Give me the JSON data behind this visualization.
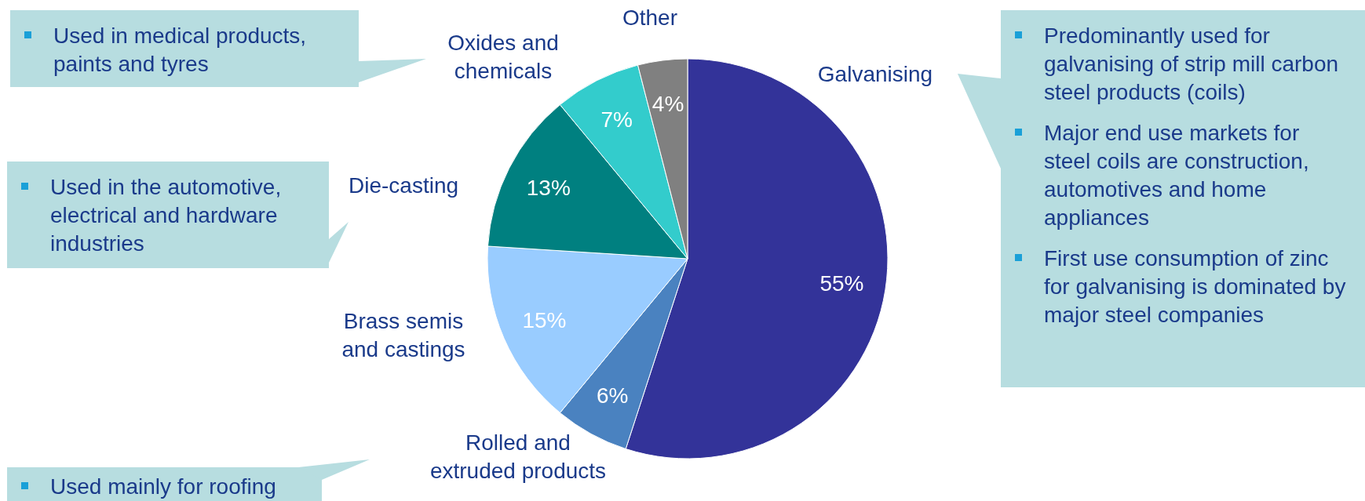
{
  "chart_data": {
    "type": "pie",
    "categories": [
      "Galvanising",
      "Rolled and extruded products",
      "Brass semis and castings",
      "Die-casting",
      "Oxides and chemicals",
      "Other"
    ],
    "values": [
      55,
      6,
      15,
      13,
      7,
      4
    ],
    "colors": [
      "#333399",
      "#4a82c0",
      "#99ccff",
      "#008080",
      "#33cccc",
      "#808080"
    ],
    "value_labels": [
      "55%",
      "6%",
      "15%",
      "13%",
      "7%",
      "4%"
    ],
    "annotations": [
      "Used in medical products, paints and tyres",
      "Used in the automotive, electrical and hardware industries",
      "Used mainly for roofing",
      "Predominantly used for galvanising of strip mill carbon steel products (coils)",
      "Major end use markets for steel coils are construction, automotives and home appliances",
      "First use consumption of zinc for galvanising is dominated by major steel companies"
    ]
  }
}
